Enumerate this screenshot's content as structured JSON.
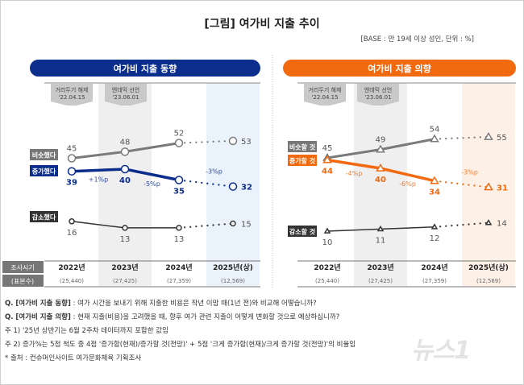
{
  "title": "[그림] 여가비 지출 추이",
  "base_note": "[BASE : 만 19세 이상 성인, 단위 : %]",
  "colors": {
    "blue": "#0b2d8c",
    "orange": "#f26a10",
    "gray": "#7a7a7a",
    "dark": "#333333"
  },
  "table_labels": {
    "period": "조사시기",
    "sample": "(표본수)"
  },
  "chart_data": [
    {
      "type": "line",
      "title": "여가비 지출 동향",
      "marker": "circle",
      "accent": "#0b2d8c",
      "categories": [
        "2022년",
        "2023년",
        "2024년",
        "2025년(상)"
      ],
      "samples": [
        "(25,440)",
        "(27,425)",
        "(27,359)",
        "(12,569)"
      ],
      "events": [
        {
          "label": "거리두기 해제",
          "date": "'22.04.15"
        },
        {
          "label": "엔데믹 선언",
          "date": "'23.06.01"
        }
      ],
      "series": [
        {
          "name": "비슷했다",
          "values": [
            45,
            48,
            52,
            53
          ],
          "color": "#7a7a7a"
        },
        {
          "name": "증가했다",
          "values": [
            39,
            40,
            35,
            32
          ],
          "color": "#0b2d8c"
        },
        {
          "name": "감소했다",
          "values": [
            16,
            13,
            13,
            15
          ],
          "color": "#333333"
        }
      ],
      "changes": [
        "+1%p",
        "-5%p",
        "-3%p"
      ]
    },
    {
      "type": "line",
      "title": "여가비 지출 의향",
      "marker": "triangle",
      "accent": "#f26a10",
      "categories": [
        "2022년",
        "2023년",
        "2024년",
        "2025년(상)"
      ],
      "samples": [
        "(25,440)",
        "(27,425)",
        "(27,359)",
        "(12,569)"
      ],
      "events": [
        {
          "label": "거리두기 해제",
          "date": "'22.04.15"
        },
        {
          "label": "엔데믹 선언",
          "date": "'23.06.01"
        }
      ],
      "series": [
        {
          "name": "비슷할 것",
          "values": [
            45,
            49,
            54,
            55
          ],
          "color": "#7a7a7a"
        },
        {
          "name": "증가할 것",
          "values": [
            44,
            40,
            34,
            31
          ],
          "color": "#f26a10"
        },
        {
          "name": "감소할 것",
          "values": [
            10,
            11,
            12,
            14
          ],
          "color": "#333333"
        }
      ],
      "changes": [
        "-4%p",
        "-6%p",
        "-3%p"
      ]
    }
  ],
  "notes": [
    {
      "prefix": "Q. [여가비 지출 동향]",
      "text": " : 여가 시간을 보내기 위해 지출한 비용은 작년 이맘 때(1년 전)와 비교해 어떻습니까?"
    },
    {
      "prefix": "Q. [여가비 지출 의향]",
      "text": " : 현재 지출(비용)을 고려했을 때, 향후 여가 관련 지출이 어떻게 변화할 것으로 예상하십니까?"
    },
    {
      "prefix": "",
      "text": "주 1) '25년 상반기는 6월 2주차 데이터까지 포함한 값임"
    },
    {
      "prefix": "",
      "text": "주 2) 증가%는 5점 척도 중 4점 '증가함(현재)/증가할 것(전망)' + 5점 '크게 증가함(현재)/크게 증가할 것(전망)'의 비율임"
    },
    {
      "prefix": "",
      "text": "* 출처 : 컨슈머인사이트 여가문화체육 기획조사"
    }
  ],
  "watermark": "뉴스1"
}
